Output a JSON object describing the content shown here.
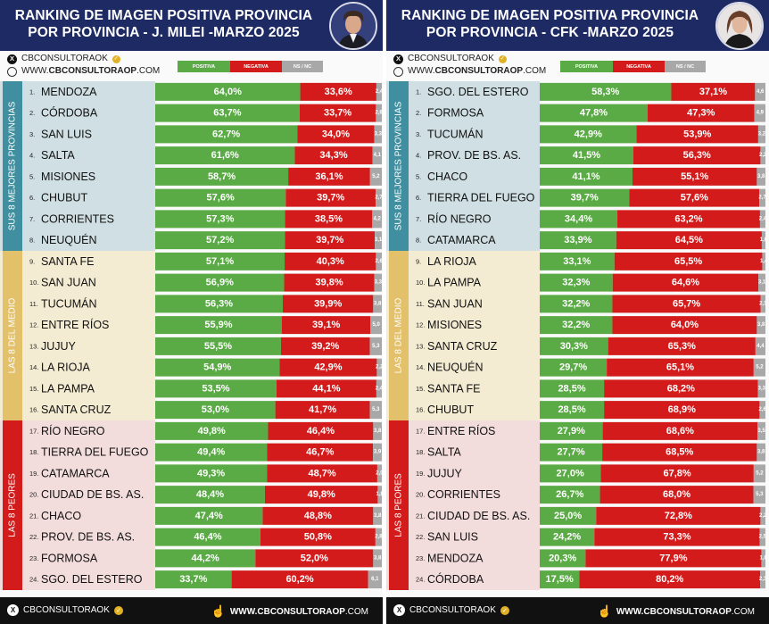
{
  "colors": {
    "header_bg": "#1e2a64",
    "positiva": "#5aaa45",
    "negativa": "#d41b1b",
    "ns_nc": "#a8a8a8",
    "group_top_bg": "#cfdfe3",
    "group_top_band": "#3f8fa0",
    "group_mid_bg": "#f4ecd2",
    "group_mid_band": "#e3c06a",
    "group_bottom_bg": "#f3dcdc",
    "group_bottom_band": "#d41b1b"
  },
  "footer": {
    "handle": "CBCONSULTORAOK",
    "website_bold": "WWW.CBCONSULTORAOP",
    "website_tail": ".COM"
  },
  "panels": [
    {
      "title": "RANKING DE IMAGEN POSITIVA PROVINCIA POR PROVINCIA - J. MILEI -MARZO 2025",
      "avatar_icon": "milei-portrait-icon",
      "brand": {
        "handle": "CBCONSULTORAOK",
        "website_prefix": "WWW.",
        "website_bold": "CBCONSULTORAOP",
        "website_tail": ".COM"
      },
      "legend": [
        "POSITIVA",
        "NEGATIVA",
        "NS / NC"
      ],
      "groups": [
        "SUS 8 MEJORES PROVINCIAS",
        "LAS 8 DEL MEDIO",
        "LAS 8 PEORES"
      ],
      "chart_data": {
        "type": "bar",
        "stacked": true,
        "orientation": "horizontal",
        "title": "RANKING DE IMAGEN POSITIVA PROVINCIA POR PROVINCIA - J. MILEI -MARZO 2025",
        "series_names": [
          "POSITIVA",
          "NEGATIVA",
          "NS / NC"
        ],
        "rows": [
          {
            "rank": "1.",
            "name": "MENDOZA",
            "pos": 64.0,
            "neg": 33.6,
            "nsnc": 2.4,
            "pos_label": "64,0%",
            "neg_label": "33,6%",
            "nsnc_label": "2,4"
          },
          {
            "rank": "2.",
            "name": "CÓRDOBA",
            "pos": 63.7,
            "neg": 33.7,
            "nsnc": 2.6,
            "pos_label": "63,7%",
            "neg_label": "33,7%",
            "nsnc_label": "2,6"
          },
          {
            "rank": "3.",
            "name": "SAN LUIS",
            "pos": 62.7,
            "neg": 34.0,
            "nsnc": 3.3,
            "pos_label": "62,7%",
            "neg_label": "34,0%",
            "nsnc_label": "3,3"
          },
          {
            "rank": "4.",
            "name": "SALTA",
            "pos": 61.6,
            "neg": 34.3,
            "nsnc": 4.1,
            "pos_label": "61,6%",
            "neg_label": "34,3%",
            "nsnc_label": "4,1"
          },
          {
            "rank": "5.",
            "name": "MISIONES",
            "pos": 58.7,
            "neg": 36.1,
            "nsnc": 5.2,
            "pos_label": "58,7%",
            "neg_label": "36,1%",
            "nsnc_label": "5,2"
          },
          {
            "rank": "6.",
            "name": "CHUBUT",
            "pos": 57.6,
            "neg": 39.7,
            "nsnc": 2.7,
            "pos_label": "57,6%",
            "neg_label": "39,7%",
            "nsnc_label": "2,7"
          },
          {
            "rank": "7.",
            "name": "CORRIENTES",
            "pos": 57.3,
            "neg": 38.5,
            "nsnc": 4.2,
            "pos_label": "57,3%",
            "neg_label": "38,5%",
            "nsnc_label": "4,2"
          },
          {
            "rank": "8.",
            "name": "NEUQUÉN",
            "pos": 57.2,
            "neg": 39.7,
            "nsnc": 3.1,
            "pos_label": "57,2%",
            "neg_label": "39,7%",
            "nsnc_label": "3,1"
          },
          {
            "rank": "9.",
            "name": "SANTA FE",
            "pos": 57.1,
            "neg": 40.3,
            "nsnc": 2.6,
            "pos_label": "57,1%",
            "neg_label": "40,3%",
            "nsnc_label": "2,6"
          },
          {
            "rank": "10.",
            "name": "SAN JUAN",
            "pos": 56.9,
            "neg": 39.8,
            "nsnc": 3.3,
            "pos_label": "56,9%",
            "neg_label": "39,8%",
            "nsnc_label": "3,3"
          },
          {
            "rank": "11.",
            "name": "TUCUMÁN",
            "pos": 56.3,
            "neg": 39.9,
            "nsnc": 3.8,
            "pos_label": "56,3%",
            "neg_label": "39,9%",
            "nsnc_label": "3,8"
          },
          {
            "rank": "12.",
            "name": "ENTRE RÍOS",
            "pos": 55.9,
            "neg": 39.1,
            "nsnc": 5.0,
            "pos_label": "55,9%",
            "neg_label": "39,1%",
            "nsnc_label": "5,0"
          },
          {
            "rank": "13.",
            "name": "JUJUY",
            "pos": 55.5,
            "neg": 39.2,
            "nsnc": 5.3,
            "pos_label": "55,5%",
            "neg_label": "39,2%",
            "nsnc_label": "5,3"
          },
          {
            "rank": "14.",
            "name": "LA RIOJA",
            "pos": 54.9,
            "neg": 42.9,
            "nsnc": 2.2,
            "pos_label": "54,9%",
            "neg_label": "42,9%",
            "nsnc_label": "2,2"
          },
          {
            "rank": "15.",
            "name": "LA PAMPA",
            "pos": 53.5,
            "neg": 44.1,
            "nsnc": 2.4,
            "pos_label": "53,5%",
            "neg_label": "44,1%",
            "nsnc_label": "2,4"
          },
          {
            "rank": "16.",
            "name": "SANTA CRUZ",
            "pos": 53.0,
            "neg": 41.7,
            "nsnc": 5.3,
            "pos_label": "53,0%",
            "neg_label": "41,7%",
            "nsnc_label": "5,3"
          },
          {
            "rank": "17.",
            "name": "RÍO NEGRO",
            "pos": 49.8,
            "neg": 46.4,
            "nsnc": 3.8,
            "pos_label": "49,8%",
            "neg_label": "46,4%",
            "nsnc_label": "3,8"
          },
          {
            "rank": "18.",
            "name": "TIERRA DEL FUEGO",
            "pos": 49.4,
            "neg": 46.7,
            "nsnc": 3.9,
            "pos_label": "49,4%",
            "neg_label": "46,7%",
            "nsnc_label": "3,9"
          },
          {
            "rank": "19.",
            "name": "CATAMARCA",
            "pos": 49.3,
            "neg": 48.7,
            "nsnc": 2.0,
            "pos_label": "49,3%",
            "neg_label": "48,7%",
            "nsnc_label": "2,0"
          },
          {
            "rank": "20.",
            "name": "CIUDAD DE BS. AS.",
            "pos": 48.4,
            "neg": 49.8,
            "nsnc": 1.8,
            "pos_label": "48,4%",
            "neg_label": "49,8%",
            "nsnc_label": "1,8"
          },
          {
            "rank": "21.",
            "name": "CHACO",
            "pos": 47.4,
            "neg": 48.8,
            "nsnc": 3.8,
            "pos_label": "47,4%",
            "neg_label": "48,8%",
            "nsnc_label": "3,8"
          },
          {
            "rank": "22.",
            "name": "PROV. DE BS. AS.",
            "pos": 46.4,
            "neg": 50.8,
            "nsnc": 2.8,
            "pos_label": "46,4%",
            "neg_label": "50,8%",
            "nsnc_label": "2,8"
          },
          {
            "rank": "23.",
            "name": "FORMOSA",
            "pos": 44.2,
            "neg": 52.0,
            "nsnc": 3.8,
            "pos_label": "44,2%",
            "neg_label": "52,0%",
            "nsnc_label": "3,8"
          },
          {
            "rank": "24.",
            "name": "SGO. DEL ESTERO",
            "pos": 33.7,
            "neg": 60.2,
            "nsnc": 6.1,
            "pos_label": "33,7%",
            "neg_label": "60,2%",
            "nsnc_label": "6,1"
          }
        ]
      }
    },
    {
      "title": "RANKING DE IMAGEN POSITIVA PROVINCIA POR PROVINCIA - CFK -MARZO 2025",
      "avatar_icon": "cfk-portrait-icon",
      "brand": {
        "handle": "CBCONSULTORAOK",
        "website_prefix": "WWW.",
        "website_bold": "CBCONSULTORAOP",
        "website_tail": ".COM"
      },
      "legend": [
        "POSITIVA",
        "NEGATIVA",
        "NS / NC"
      ],
      "groups": [
        "SUS 8 MEJORES PROVINCIAS",
        "LAS 8 DEL MEDIO",
        "LAS 8 PEORES"
      ],
      "chart_data": {
        "type": "bar",
        "stacked": true,
        "orientation": "horizontal",
        "title": "RANKING DE IMAGEN POSITIVA PROVINCIA POR PROVINCIA - CFK -MARZO 2025",
        "series_names": [
          "POSITIVA",
          "NEGATIVA",
          "NS / NC"
        ],
        "rows": [
          {
            "rank": "1.",
            "name": "SGO. DEL ESTERO",
            "pos": 58.3,
            "neg": 37.1,
            "nsnc": 4.6,
            "pos_label": "58,3%",
            "neg_label": "37,1%",
            "nsnc_label": "4,6"
          },
          {
            "rank": "2.",
            "name": "FORMOSA",
            "pos": 47.8,
            "neg": 47.3,
            "nsnc": 4.9,
            "pos_label": "47,8%",
            "neg_label": "47,3%",
            "nsnc_label": "4,9"
          },
          {
            "rank": "3.",
            "name": "TUCUMÁN",
            "pos": 42.9,
            "neg": 53.9,
            "nsnc": 3.2,
            "pos_label": "42,9%",
            "neg_label": "53,9%",
            "nsnc_label": "3,2"
          },
          {
            "rank": "4.",
            "name": "PROV. DE BS. AS.",
            "pos": 41.5,
            "neg": 56.3,
            "nsnc": 2.2,
            "pos_label": "41,5%",
            "neg_label": "56,3%",
            "nsnc_label": "2,2"
          },
          {
            "rank": "5.",
            "name": "CHACO",
            "pos": 41.1,
            "neg": 55.1,
            "nsnc": 3.8,
            "pos_label": "41,1%",
            "neg_label": "55,1%",
            "nsnc_label": "3,8"
          },
          {
            "rank": "6.",
            "name": "TIERRA DEL FUEGO",
            "pos": 39.7,
            "neg": 57.6,
            "nsnc": 2.7,
            "pos_label": "39,7%",
            "neg_label": "57,6%",
            "nsnc_label": "2,7"
          },
          {
            "rank": "7.",
            "name": "RÍO NEGRO",
            "pos": 34.4,
            "neg": 63.2,
            "nsnc": 2.4,
            "pos_label": "34,4%",
            "neg_label": "63,2%",
            "nsnc_label": "2,4"
          },
          {
            "rank": "8.",
            "name": "CATAMARCA",
            "pos": 33.9,
            "neg": 64.5,
            "nsnc": 1.6,
            "pos_label": "33,9%",
            "neg_label": "64,5%",
            "nsnc_label": "1,6"
          },
          {
            "rank": "9.",
            "name": "LA RIOJA",
            "pos": 33.1,
            "neg": 65.5,
            "nsnc": 1.4,
            "pos_label": "33,1%",
            "neg_label": "65,5%",
            "nsnc_label": "1,4"
          },
          {
            "rank": "10.",
            "name": "LA PAMPA",
            "pos": 32.3,
            "neg": 64.6,
            "nsnc": 3.1,
            "pos_label": "32,3%",
            "neg_label": "64,6%",
            "nsnc_label": "3,1"
          },
          {
            "rank": "11.",
            "name": "SAN JUAN",
            "pos": 32.2,
            "neg": 65.7,
            "nsnc": 2.1,
            "pos_label": "32,2%",
            "neg_label": "65,7%",
            "nsnc_label": "2,1"
          },
          {
            "rank": "12.",
            "name": "MISIONES",
            "pos": 32.2,
            "neg": 64.0,
            "nsnc": 3.8,
            "pos_label": "32,2%",
            "neg_label": "64,0%",
            "nsnc_label": "3,8"
          },
          {
            "rank": "13.",
            "name": "SANTA CRUZ",
            "pos": 30.3,
            "neg": 65.3,
            "nsnc": 4.4,
            "pos_label": "30,3%",
            "neg_label": "65,3%",
            "nsnc_label": "4,4"
          },
          {
            "rank": "14.",
            "name": "NEUQUÉN",
            "pos": 29.7,
            "neg": 65.1,
            "nsnc": 5.2,
            "pos_label": "29,7%",
            "neg_label": "65,1%",
            "nsnc_label": "5,2"
          },
          {
            "rank": "15.",
            "name": "SANTA FE",
            "pos": 28.5,
            "neg": 68.2,
            "nsnc": 3.3,
            "pos_label": "28,5%",
            "neg_label": "68,2%",
            "nsnc_label": "3,3"
          },
          {
            "rank": "16.",
            "name": "CHUBUT",
            "pos": 28.5,
            "neg": 68.9,
            "nsnc": 2.6,
            "pos_label": "28,5%",
            "neg_label": "68,9%",
            "nsnc_label": "2,6"
          },
          {
            "rank": "17.",
            "name": "ENTRE RÍOS",
            "pos": 27.9,
            "neg": 68.6,
            "nsnc": 3.5,
            "pos_label": "27,9%",
            "neg_label": "68,6%",
            "nsnc_label": "3,5"
          },
          {
            "rank": "18.",
            "name": "SALTA",
            "pos": 27.7,
            "neg": 68.5,
            "nsnc": 3.8,
            "pos_label": "27,7%",
            "neg_label": "68,5%",
            "nsnc_label": "3,8"
          },
          {
            "rank": "19.",
            "name": "JUJUY",
            "pos": 27.0,
            "neg": 67.8,
            "nsnc": 5.2,
            "pos_label": "27,0%",
            "neg_label": "67,8%",
            "nsnc_label": "5,2"
          },
          {
            "rank": "20.",
            "name": "CORRIENTES",
            "pos": 26.7,
            "neg": 68.0,
            "nsnc": 5.3,
            "pos_label": "26,7%",
            "neg_label": "68,0%",
            "nsnc_label": "5,3"
          },
          {
            "rank": "21.",
            "name": "CIUDAD DE BS. AS.",
            "pos": 25.0,
            "neg": 72.8,
            "nsnc": 2.2,
            "pos_label": "25,0%",
            "neg_label": "72,8%",
            "nsnc_label": "2,2"
          },
          {
            "rank": "22.",
            "name": "SAN LUIS",
            "pos": 24.2,
            "neg": 73.3,
            "nsnc": 2.5,
            "pos_label": "24,2%",
            "neg_label": "73,3%",
            "nsnc_label": "2,5"
          },
          {
            "rank": "23.",
            "name": "MENDOZA",
            "pos": 20.3,
            "neg": 77.9,
            "nsnc": 1.8,
            "pos_label": "20,3%",
            "neg_label": "77,9%",
            "nsnc_label": "1,8"
          },
          {
            "rank": "24.",
            "name": "CÓRDOBA",
            "pos": 17.5,
            "neg": 80.2,
            "nsnc": 2.3,
            "pos_label": "17,5%",
            "neg_label": "80,2%",
            "nsnc_label": "2,3"
          }
        ]
      }
    }
  ]
}
